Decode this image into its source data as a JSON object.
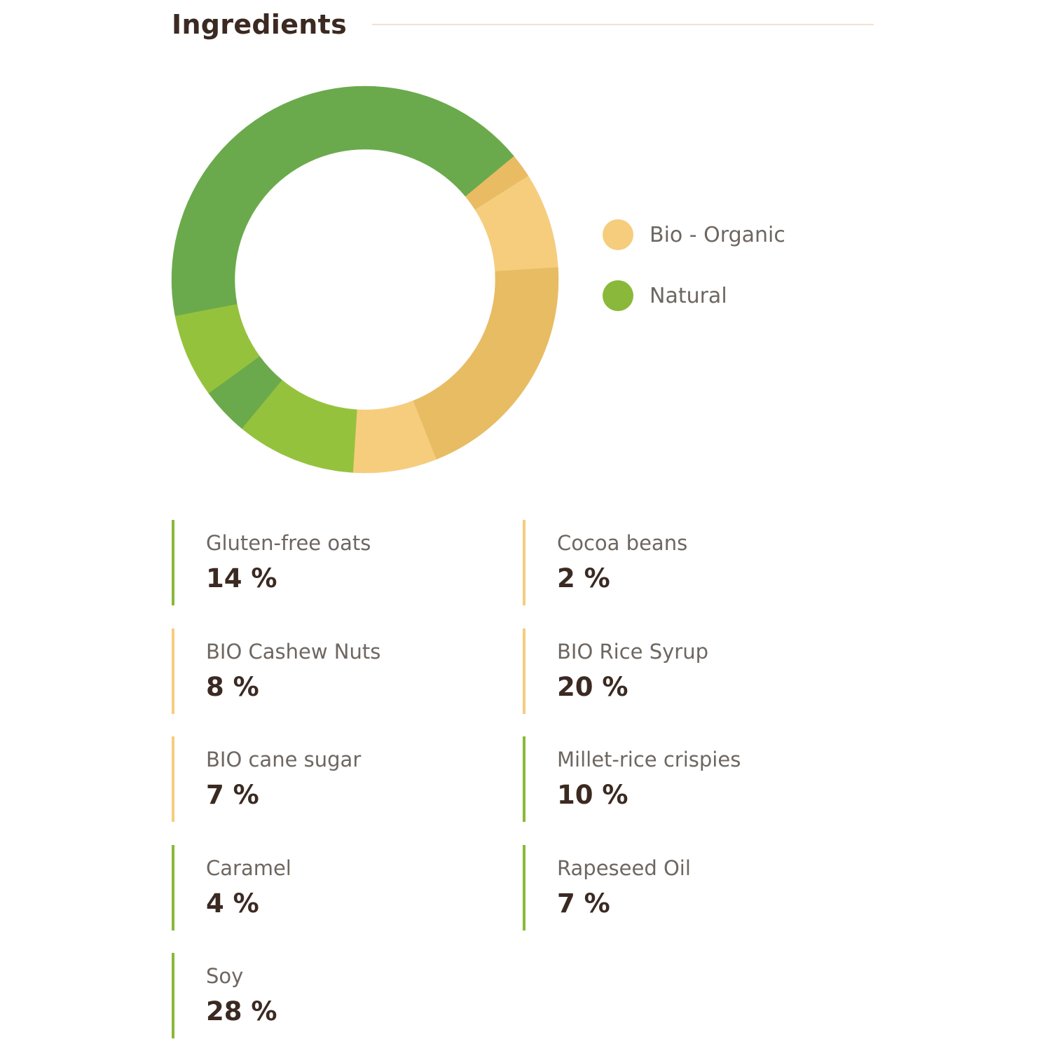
{
  "header": {
    "title": "Ingredients"
  },
  "colors": {
    "organic": "#f5cd7d",
    "natural": "#8ab83a",
    "title": "#3b2a22",
    "rule": "#efe2d6",
    "label": "#6e6660"
  },
  "legend": [
    {
      "label": "Bio - Organic",
      "color": "#f5cd7d"
    },
    {
      "label": "Natural",
      "color": "#8ab83a"
    }
  ],
  "chart_data": {
    "type": "pie",
    "title": "",
    "series": [
      {
        "categories": [
          "Gluten-free oats",
          "Cocoa beans",
          "BIO Cashew Nuts",
          "BIO Rice Syrup",
          "BIO cane sugar",
          "Millet-rice crispies",
          "Caramel",
          "Rapeseed Oil",
          "Soy"
        ],
        "values": [
          14,
          2,
          8,
          20,
          7,
          10,
          4,
          7,
          28
        ],
        "colors": [
          "#6aaa4c",
          "#e9bb62",
          "#f5cd7d",
          "#e8bc63",
          "#f5cd7d",
          "#95c23d",
          "#6aaa4c",
          "#95c23d",
          "#6aaa4c"
        ]
      }
    ],
    "legend": [
      "Bio - Organic",
      "Natural"
    ],
    "legend_position": "right"
  },
  "ingredients": [
    {
      "name": "Gluten-free oats",
      "pct": "14 %",
      "type": "natural"
    },
    {
      "name": "Cocoa beans",
      "pct": "2 %",
      "type": "organic"
    },
    {
      "name": "BIO Cashew Nuts",
      "pct": "8 %",
      "type": "organic"
    },
    {
      "name": "BIO Rice Syrup",
      "pct": "20 %",
      "type": "organic"
    },
    {
      "name": "BIO cane sugar",
      "pct": "7 %",
      "type": "organic"
    },
    {
      "name": "Millet-rice crispies",
      "pct": "10 %",
      "type": "natural"
    },
    {
      "name": "Caramel",
      "pct": "4 %",
      "type": "natural"
    },
    {
      "name": "Rapeseed Oil",
      "pct": "7 %",
      "type": "natural"
    },
    {
      "name": "Soy",
      "pct": "28 %",
      "type": "natural"
    }
  ]
}
